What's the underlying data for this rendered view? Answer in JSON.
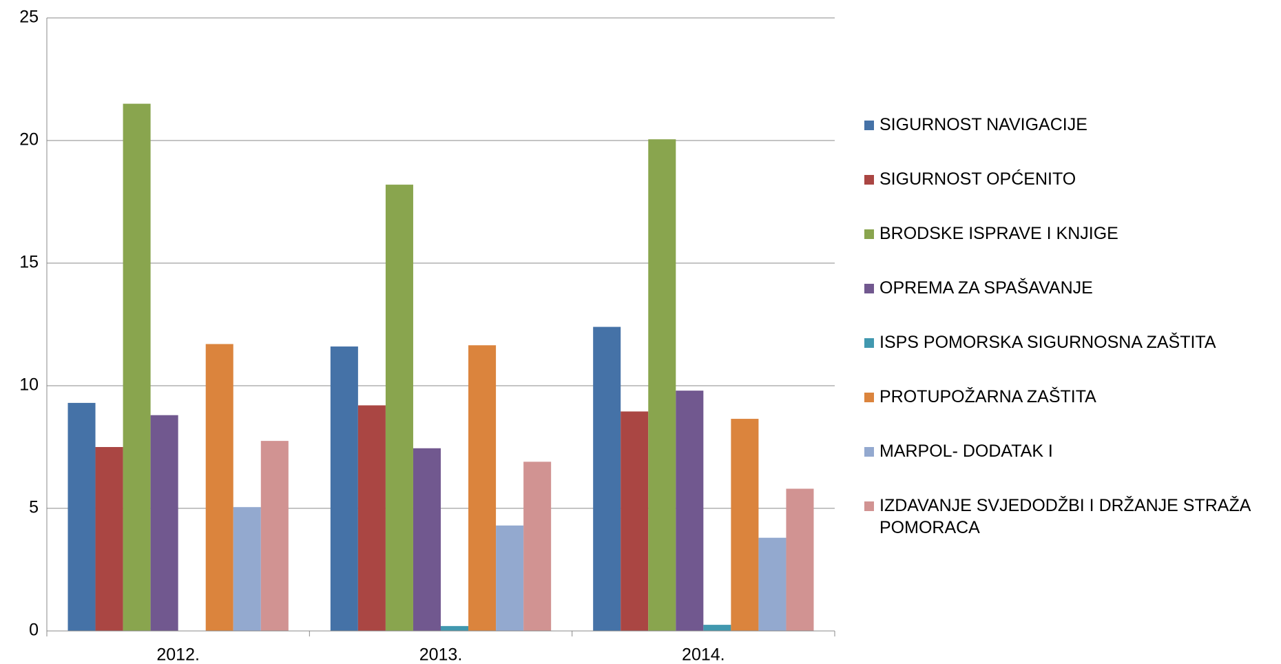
{
  "chart_data": {
    "type": "bar",
    "categories": [
      "2012.",
      "2013.",
      "2014."
    ],
    "series": [
      {
        "name": "SIGURNOST NAVIGACIJE",
        "color": "#4572a7",
        "values": [
          9.3,
          11.6,
          12.4
        ]
      },
      {
        "name": "SIGURNOST OPĆENITO",
        "color": "#aa4643",
        "values": [
          7.5,
          9.2,
          8.95
        ]
      },
      {
        "name": "BRODSKE ISPRAVE I KNJIGE",
        "color": "#89a54e",
        "values": [
          21.5,
          18.2,
          20.05
        ]
      },
      {
        "name": "OPREMA ZA SPAŠAVANJE",
        "color": "#71588f",
        "values": [
          8.8,
          7.45,
          9.8
        ]
      },
      {
        "name": "ISPS POMORSKA SIGURNOSNA ZAŠTITA",
        "color": "#4198af",
        "values": [
          0,
          0.2,
          0.25
        ]
      },
      {
        "name": "PROTUPOŽARNA ZAŠTITA",
        "color": "#db843d",
        "values": [
          11.7,
          11.65,
          8.65
        ]
      },
      {
        "name": "MARPOL- DODATAK I",
        "color": "#93a9cf",
        "values": [
          5.05,
          4.3,
          3.8
        ]
      },
      {
        "name": "IZDAVANJE SVJEDODŽBI I DRŽANJE STRAŽA POMORACA",
        "color": "#d19392",
        "values": [
          7.75,
          6.9,
          5.8
        ]
      }
    ],
    "ylim": [
      0,
      25
    ],
    "yticks": [
      0,
      5,
      10,
      15,
      20,
      25
    ],
    "grid": true,
    "legend": "right"
  }
}
